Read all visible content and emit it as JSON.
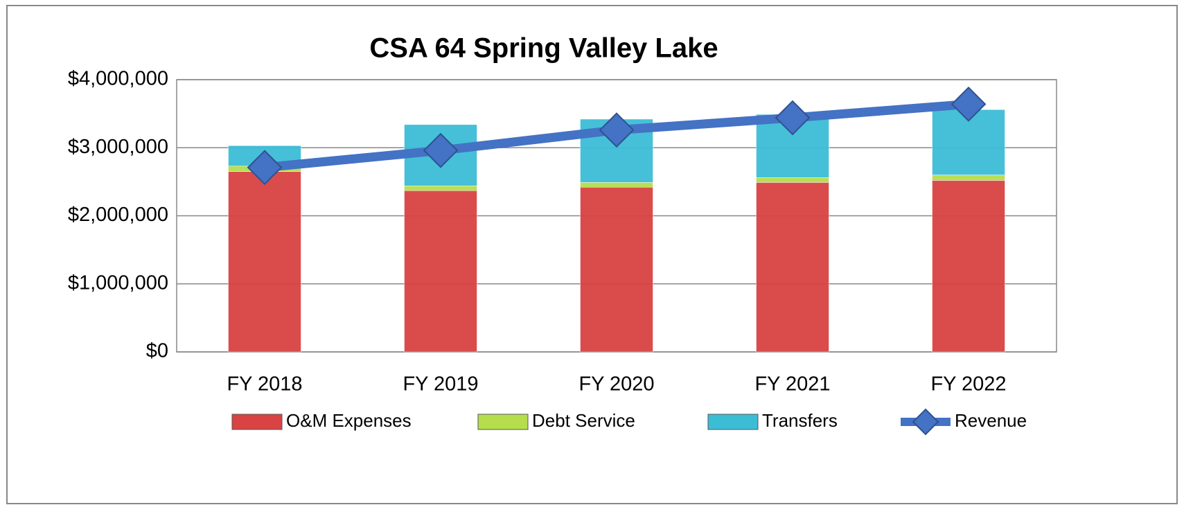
{
  "chart_data": {
    "type": "bar",
    "stacked": true,
    "title": "CSA 64 Spring Valley Lake",
    "categories": [
      "FY 2018",
      "FY 2019",
      "FY 2020",
      "FY 2021",
      "FY 2022"
    ],
    "series": [
      {
        "name": "O&M Expenses",
        "type": "bar",
        "color": "#d94343",
        "values": [
          2650000,
          2370000,
          2420000,
          2490000,
          2520000
        ]
      },
      {
        "name": "Debt Service",
        "type": "bar",
        "color": "#b5de4c",
        "values": [
          80000,
          70000,
          70000,
          70000,
          80000
        ]
      },
      {
        "name": "Transfers",
        "type": "bar",
        "color": "#3cbdd6",
        "values": [
          300000,
          900000,
          930000,
          930000,
          960000
        ]
      },
      {
        "name": "Revenue",
        "type": "line",
        "color": "#4472c4",
        "values": [
          2710000,
          2960000,
          3260000,
          3440000,
          3640000
        ]
      }
    ],
    "ylim": [
      0,
      4000000
    ],
    "yticks": [
      {
        "value": 0,
        "label": "$0"
      },
      {
        "value": 1000000,
        "label": "$1,000,000"
      },
      {
        "value": 2000000,
        "label": "$2,000,000"
      },
      {
        "value": 3000000,
        "label": "$3,000,000"
      },
      {
        "value": 4000000,
        "label": "$4,000,000"
      }
    ],
    "grid": true,
    "legend": "bottom"
  }
}
